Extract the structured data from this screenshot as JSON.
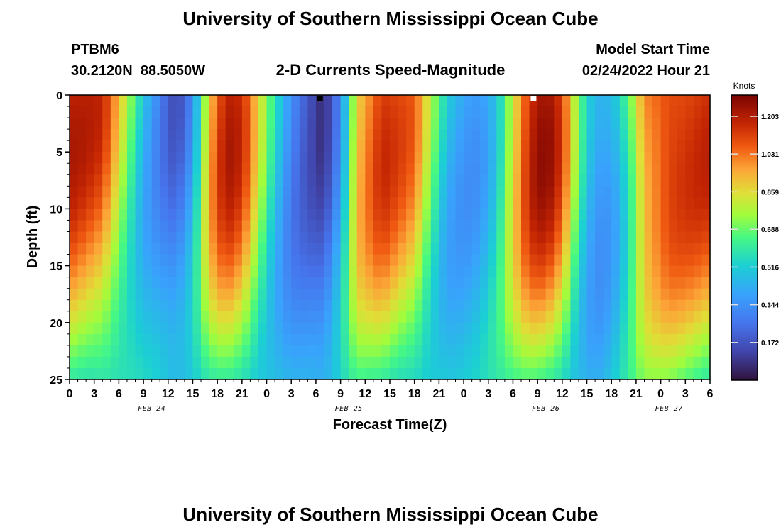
{
  "header": {
    "title": "University of Southern Mississippi Ocean Cube",
    "station_id": "PTBM6",
    "coordinates": "30.2120N  88.5050W",
    "subtitle": "2-D Currents Speed-Magnitude",
    "model_start_label": "Model Start Time",
    "model_start_value": "02/24/2022 Hour 21"
  },
  "footer": {
    "title": "University of Southern Mississippi Ocean Cube"
  },
  "chart_data": {
    "type": "heatmap",
    "xlabel": "Forecast Time(Z)",
    "ylabel": "Depth (ft)",
    "colorbar_label": "Knots",
    "colorbar_ticks": [
      "1.203",
      "1.031",
      "0.859",
      "0.688",
      "0.516",
      "0.344",
      "0.172"
    ],
    "colorbar_range": [
      0.0,
      1.3
    ],
    "x_tick_labels": [
      "0",
      "3",
      "6",
      "9",
      "12",
      "15",
      "18",
      "21",
      "0",
      "3",
      "6",
      "9",
      "12",
      "15",
      "18",
      "21",
      "0",
      "3",
      "6",
      "9",
      "12",
      "15",
      "18",
      "21",
      "0",
      "3",
      "6"
    ],
    "date_labels": [
      {
        "label": "FEB 24",
        "hour_index": 10
      },
      {
        "label": "FEB 25",
        "hour_index": 34
      },
      {
        "label": "FEB 26",
        "hour_index": 58
      },
      {
        "label": "FEB 27",
        "hour_index": 73
      }
    ],
    "x_range_hours": [
      0,
      78
    ],
    "y_ticks": [
      "0",
      "5",
      "10",
      "15",
      "20",
      "25"
    ],
    "ylim": [
      0,
      25
    ],
    "surface_speed_knots": [
      [
        0,
        1.18
      ],
      [
        4,
        1.1
      ],
      [
        7,
        0.72
      ],
      [
        9,
        0.48
      ],
      [
        11,
        0.32
      ],
      [
        13,
        0.2
      ],
      [
        15,
        0.4
      ],
      [
        17,
        0.95
      ],
      [
        19,
        1.2
      ],
      [
        21,
        1.12
      ],
      [
        23,
        0.8
      ],
      [
        25,
        0.5
      ],
      [
        27,
        0.28
      ],
      [
        29,
        0.18
      ],
      [
        31,
        0.1
      ],
      [
        33,
        0.4
      ],
      [
        35,
        0.95
      ],
      [
        38,
        1.15
      ],
      [
        42,
        1.0
      ],
      [
        44,
        0.7
      ],
      [
        46,
        0.45
      ],
      [
        48,
        0.38
      ],
      [
        50,
        0.4
      ],
      [
        52,
        0.55
      ],
      [
        54,
        0.9
      ],
      [
        56,
        1.2
      ],
      [
        58,
        1.26
      ],
      [
        60,
        1.08
      ],
      [
        62,
        0.6
      ],
      [
        64,
        0.35
      ],
      [
        66,
        0.4
      ],
      [
        68,
        0.65
      ],
      [
        70,
        1.05
      ],
      [
        73,
        1.18
      ],
      [
        78,
        1.15
      ]
    ],
    "markers": [
      {
        "hour": 30.5,
        "depth": 0,
        "color": "#000000"
      },
      {
        "hour": 56.5,
        "depth": 0,
        "color": "#ffffff"
      }
    ]
  }
}
